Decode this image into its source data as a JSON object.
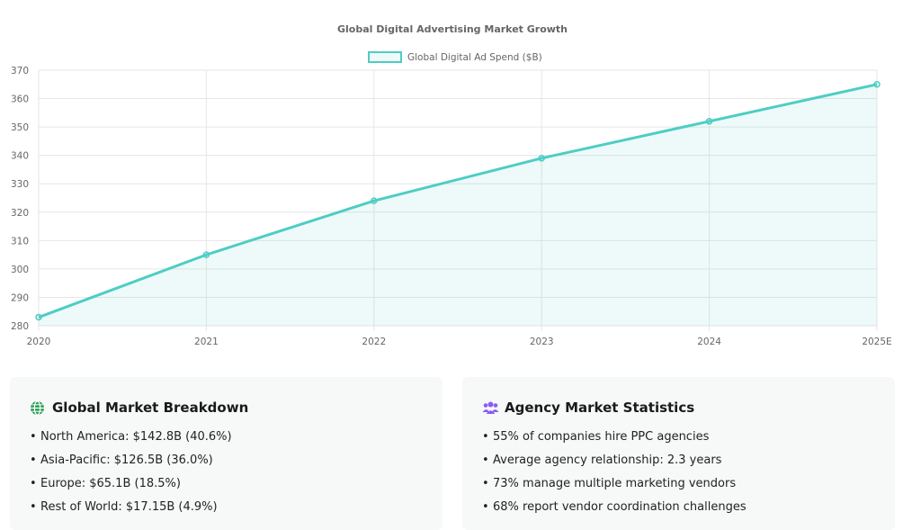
{
  "chart_data": {
    "type": "area",
    "title": "Global Digital Advertising Market Growth",
    "categories": [
      "2020",
      "2021",
      "2022",
      "2023",
      "2024",
      "2025E"
    ],
    "series": [
      {
        "name": "Global Digital Ad Spend ($B)",
        "values": [
          283,
          305,
          324,
          339,
          352,
          365
        ],
        "color": "#4ecdc4",
        "fill": "rgba(78,205,196,0.1)"
      }
    ],
    "ylim": [
      280,
      370
    ],
    "yticks": [
      280,
      290,
      300,
      310,
      320,
      330,
      340,
      350,
      360,
      370
    ],
    "grid": true,
    "legend_position": "top"
  },
  "breakdown": {
    "title": "Global Market Breakdown",
    "icon": "globe-icon",
    "icon_color": "#2e9e57",
    "items": [
      "North America: $142.8B (40.6%)",
      "Asia-Pacific: $126.5B (36.0%)",
      "Europe: $65.1B (18.5%)",
      "Rest of World: $17.15B (4.9%)"
    ]
  },
  "agency": {
    "title": "Agency Market Statistics",
    "icon": "users-icon",
    "icon_color": "#8b5cf6",
    "items": [
      "55% of companies hire PPC agencies",
      "Average agency relationship: 2.3 years",
      "73% manage multiple marketing vendors",
      "68% report vendor coordination challenges"
    ]
  }
}
